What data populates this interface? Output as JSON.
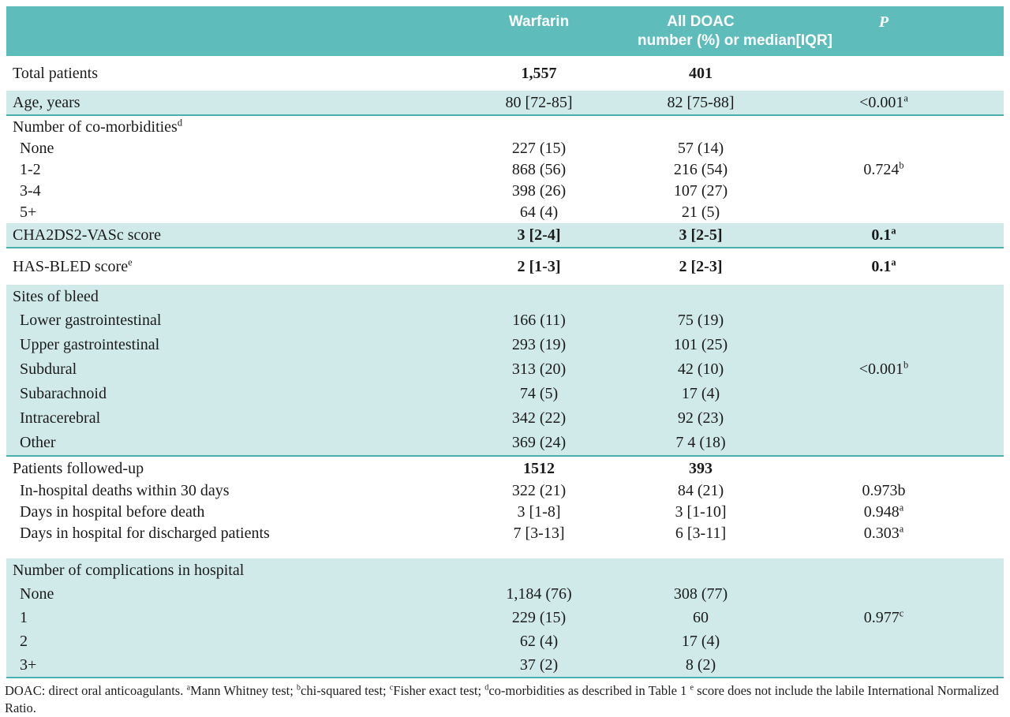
{
  "colors": {
    "header_bg": "#5ebdbb",
    "row_teal": "#cfeae8",
    "divider": "#4bb1b0",
    "text": "#1b1b1b",
    "header_text": "#ffffff"
  },
  "header": {
    "warfarin": "Warfarin",
    "doac_line1": "All DOAC",
    "doac_line2": "number (%) or median[IQR]",
    "p": "P"
  },
  "rows": [
    {
      "label": "Total patients",
      "warfarin": "1,557",
      "doac": "401",
      "p": "",
      "bg": "white",
      "bold_values": true,
      "size": "44"
    },
    {
      "label": "Age, years",
      "warfarin": "80 [72-85]",
      "doac": "82 [75-88]",
      "p": "<0.001",
      "p_sup": "a",
      "bg": "teal",
      "border_bottom": true,
      "size": "30"
    },
    {
      "label": "Number of co-morbidities",
      "label_sup": "d",
      "warfarin": "",
      "doac": "",
      "p": "",
      "bg": "white",
      "size": "28"
    },
    {
      "label": "None",
      "warfarin": "227 (15)",
      "doac": "57 (14)",
      "p": "",
      "bg": "white",
      "indent": true,
      "size": "27"
    },
    {
      "label": "1-2",
      "warfarin": "868 (56)",
      "doac": "216 (54)",
      "p": "0.724",
      "p_sup": "b",
      "bg": "white",
      "indent": true,
      "size": "27"
    },
    {
      "label": "3-4",
      "warfarin": "398 (26)",
      "doac": "107 (27)",
      "p": "",
      "bg": "white",
      "indent": true,
      "size": "27"
    },
    {
      "label": "5+",
      "warfarin": "64 (4)",
      "doac": "21 (5)",
      "p": "",
      "bg": "white",
      "indent": true,
      "size": "27"
    },
    {
      "label": "CHA2DS2-VASc score",
      "warfarin": "3 [2-4]",
      "doac": "3 [2-5]",
      "p": "0.1",
      "p_sup": "a",
      "bg": "teal",
      "bold_values": true,
      "border_bottom": true,
      "size": "30"
    },
    {
      "label": "HAS-BLED score",
      "label_sup": "e",
      "warfarin": "2 [1-3]",
      "doac": "2 [2-3]",
      "p": "0.1",
      "p_sup": "a",
      "bg": "white",
      "bold_values": true,
      "size": "46"
    },
    {
      "label": "Sites of bleed",
      "warfarin": "",
      "doac": "",
      "p": "",
      "bg": "teal",
      "size": "30"
    },
    {
      "label": "Lower gastrointestinal",
      "warfarin": "166 (11)",
      "doac": "75 (19)",
      "p": "",
      "bg": "teal",
      "indent": true,
      "size": "31"
    },
    {
      "label": "Upper gastrointestinal",
      "warfarin": "293 (19)",
      "doac": "101 (25)",
      "p": "",
      "bg": "teal",
      "indent": true,
      "size": "31"
    },
    {
      "label": "Subdural",
      "warfarin": "313 (20)",
      "doac": "42 (10)",
      "p": "<0.001",
      "p_sup": "b",
      "bg": "teal",
      "indent": true,
      "size": "31"
    },
    {
      "label": "Subarachnoid",
      "warfarin": "74 (5)",
      "doac": "17 (4)",
      "p": "",
      "bg": "teal",
      "indent": true,
      "size": "31"
    },
    {
      "label": "Intracerebral",
      "warfarin": "342 (22)",
      "doac": "92 (23)",
      "p": "",
      "bg": "teal",
      "indent": true,
      "size": "31"
    },
    {
      "label": "Other",
      "warfarin": "369 (24)",
      "doac": "7 4 (18)",
      "p": "",
      "bg": "teal",
      "indent": true,
      "border_bottom": true,
      "size": "31"
    },
    {
      "label": "Patients followed-up",
      "warfarin": "1512",
      "doac": "393",
      "p": "",
      "bg": "white",
      "bold_values": true,
      "size": "30"
    },
    {
      "label": "In-hospital deaths within 30 days",
      "warfarin": "322 (21)",
      "doac": "84 (21)",
      "p": "0.973b",
      "bg": "white",
      "indent": true,
      "size": "27"
    },
    {
      "label": "Days in hospital before death",
      "warfarin": "3 [1-8]",
      "doac": "3 [1-10]",
      "p": "0.948",
      "p_sup": "a",
      "bg": "white",
      "indent": true,
      "size": "27"
    },
    {
      "label": "Days in hospital for discharged patients",
      "warfarin": "7 [3-13]",
      "doac": "6 [3-11]",
      "p": "0.303",
      "p_sup": "a",
      "bg": "white",
      "indent": true,
      "gap_after": true,
      "size": "27"
    },
    {
      "label": "Number of complications in hospital",
      "warfarin": "",
      "doac": "",
      "p": "",
      "bg": "teal",
      "size": "30"
    },
    {
      "label": "None",
      "warfarin": "1,184 (76)",
      "doac": "308 (77)",
      "p": "",
      "bg": "teal",
      "indent": true,
      "size": "30"
    },
    {
      "label": "1",
      "warfarin": "229 (15)",
      "doac": "60",
      "p": "0.977",
      "p_sup": "c",
      "bg": "teal",
      "indent": true,
      "size": "30"
    },
    {
      "label": "2",
      "warfarin": "62 (4)",
      "doac": "17 (4)",
      "p": "",
      "bg": "teal",
      "indent": true,
      "size": "30"
    },
    {
      "label": "3+",
      "warfarin": "37 (2)",
      "doac": "8 (2)",
      "p": "",
      "bg": "teal",
      "indent": true,
      "border_bottom": true,
      "size": "30"
    }
  ],
  "footnote": {
    "segments": [
      {
        "text": "DOAC: direct oral anticoagulants. "
      },
      {
        "sup": "a"
      },
      {
        "text": "Mann Whitney test; "
      },
      {
        "sup": "b"
      },
      {
        "text": "chi-squared test; "
      },
      {
        "sup": "c"
      },
      {
        "text": "Fisher exact test; "
      },
      {
        "sup": "d"
      },
      {
        "text": "co-morbidities as described in Table 1 "
      },
      {
        "sup": "e"
      },
      {
        "text": " score does not include the labile International Normalized Ratio."
      }
    ]
  }
}
